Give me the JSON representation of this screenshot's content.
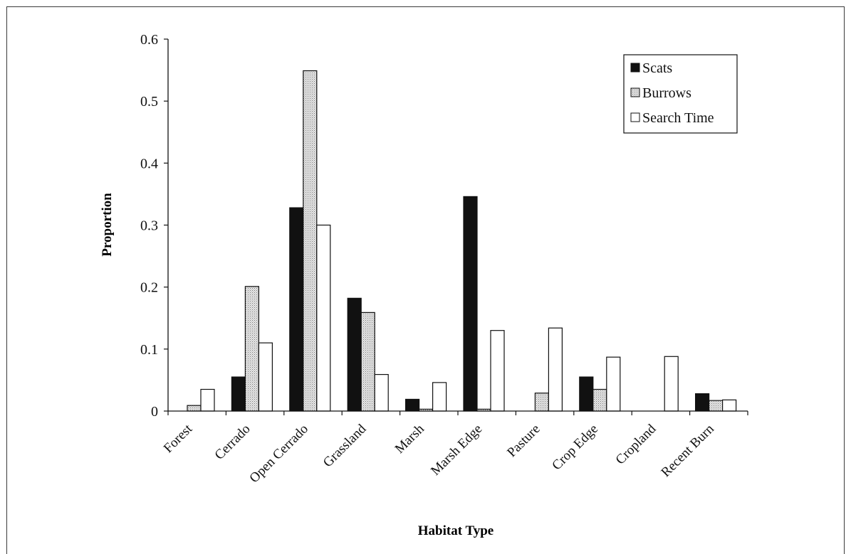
{
  "chart_data": {
    "type": "bar",
    "title": "",
    "xlabel": "Habitat Type",
    "ylabel": "Proportion",
    "ylim": [
      0,
      0.6
    ],
    "yticks": [
      "0",
      "0.1",
      "0.2",
      "0.3",
      "0.4",
      "0.5",
      "0.6"
    ],
    "grid": false,
    "legend_position": "top-right",
    "categories": [
      "Forest",
      "Cerrado",
      "Open Cerrado",
      "Grassland",
      "Marsh",
      "Marsh Edge",
      "Pasture",
      "Crop Edge",
      "Cropland",
      "Recent Burn"
    ],
    "series": [
      {
        "name": "Scats",
        "fill": "#111111",
        "values": [
          0,
          0.055,
          0.328,
          0.182,
          0.019,
          0.346,
          0,
          0.055,
          0,
          0.028
        ]
      },
      {
        "name": "Burrows",
        "fill": "#cfcfcf",
        "values": [
          0.009,
          0.201,
          0.549,
          0.159,
          0.003,
          0.003,
          0.029,
          0.035,
          0,
          0.017
        ]
      },
      {
        "name": "Search Time",
        "fill": "#ffffff",
        "values": [
          0.035,
          0.11,
          0.3,
          0.059,
          0.046,
          0.13,
          0.134,
          0.087,
          0.088,
          0.018
        ]
      }
    ]
  }
}
